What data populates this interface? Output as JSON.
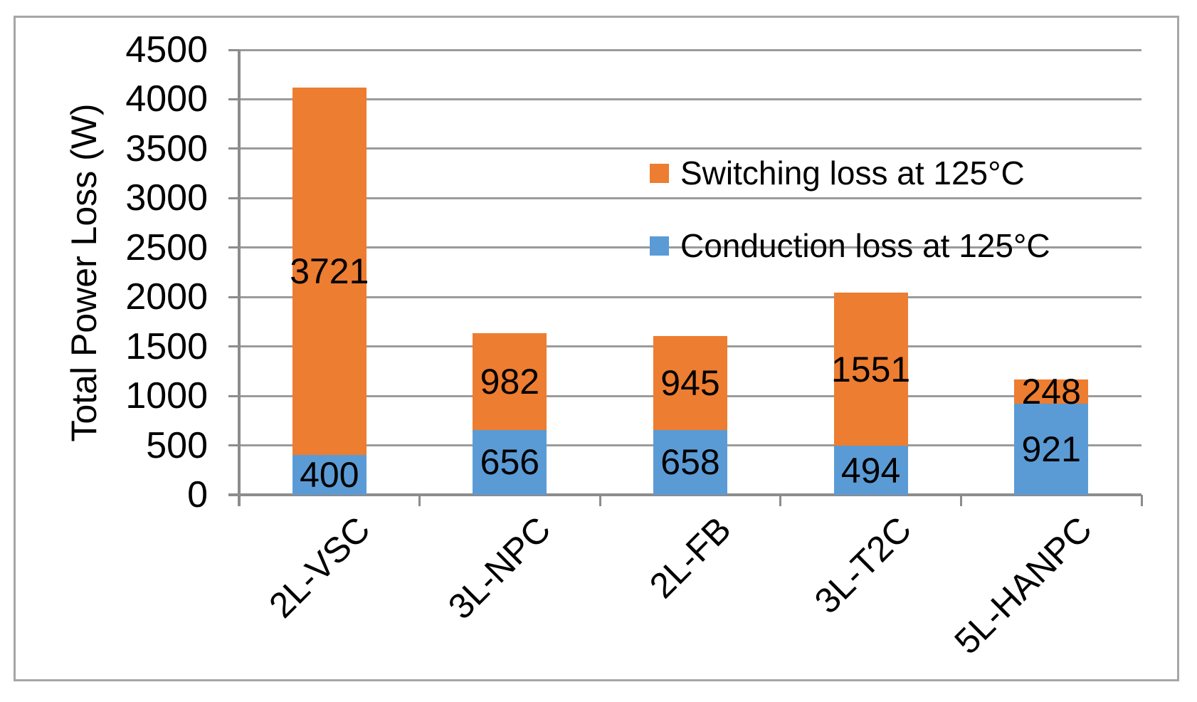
{
  "chart_data": {
    "type": "bar",
    "stacked": true,
    "title": "",
    "xlabel": "",
    "ylabel": "Total Power Loss (W)",
    "categories": [
      "2L-VSC",
      "3L-NPC",
      "2L-FB",
      "3L-T2C",
      "5L-HANPC"
    ],
    "series": [
      {
        "name": "Conduction loss at 125°C",
        "key": "conduction",
        "color": "#5B9BD5",
        "values": [
          400,
          656,
          658,
          494,
          921
        ]
      },
      {
        "name": "Switching loss at 125°C",
        "key": "switching",
        "color": "#ED7D31",
        "values": [
          3721,
          982,
          945,
          1551,
          248
        ]
      }
    ],
    "totals": [
      4121,
      1638,
      1603,
      2045,
      1169
    ],
    "ylim": [
      0,
      4500
    ],
    "ytick_step": 500,
    "yticks": [
      0,
      500,
      1000,
      1500,
      2000,
      2500,
      3000,
      3500,
      4000,
      4500
    ],
    "grid": true,
    "data_labels": true,
    "legend": {
      "position": "inside-top-right",
      "order": [
        "Switching loss at 125°C",
        "Conduction loss at 125°C"
      ]
    },
    "colors": {
      "gridline": "#9B9B9B",
      "axis": "#8C8C8C",
      "frame_border": "#A6A6A6",
      "label_text": "#000000"
    }
  }
}
